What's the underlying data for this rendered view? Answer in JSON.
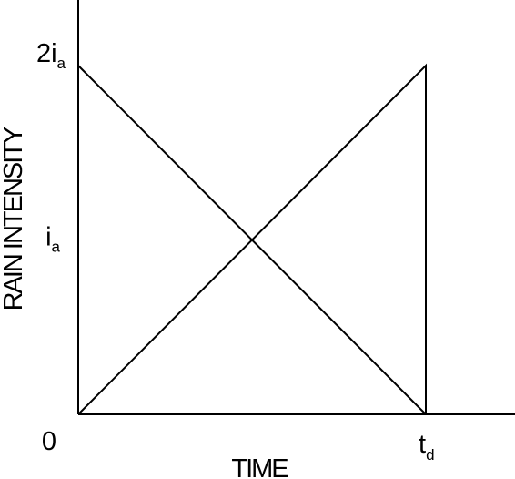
{
  "chart_data": {
    "type": "line",
    "title": "",
    "xlabel": "TIME",
    "ylabel": "RAIN INTENSITY",
    "x_ticks": [
      {
        "base": "0",
        "sub": ""
      },
      {
        "base": "t",
        "sub": "d"
      }
    ],
    "y_ticks": [
      {
        "base": "i",
        "sub": "a",
        "value": 1
      },
      {
        "base": "2i",
        "sub": "a",
        "value": 2
      }
    ],
    "xlim": [
      0,
      1
    ],
    "ylim": [
      0,
      2.2
    ],
    "grid": false,
    "legend": "none",
    "series": [
      {
        "x": [
          0,
          1
        ],
        "y": [
          2,
          0
        ]
      },
      {
        "x": [
          0,
          1,
          1
        ],
        "y": [
          0,
          2,
          0
        ]
      }
    ]
  }
}
